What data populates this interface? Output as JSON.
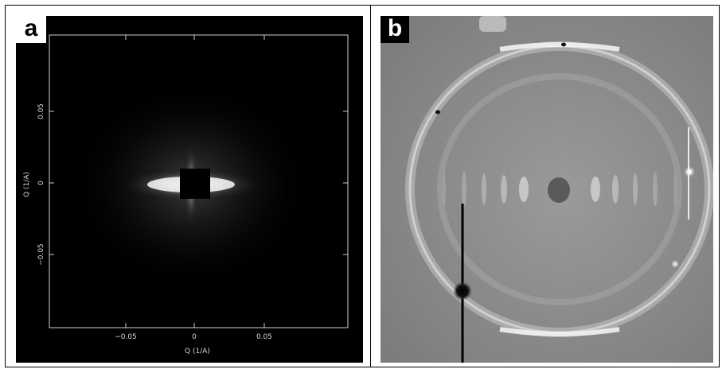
{
  "panel_a": {
    "label": "a",
    "x_axis_label": "Q (1/A)",
    "y_axis_label": "Q (1/A)",
    "x_ticks": [
      "−0.05",
      "0",
      "0.05"
    ],
    "y_ticks": [
      "0.05",
      "0",
      "−0.05"
    ]
  },
  "panel_b": {
    "label": "b"
  }
}
